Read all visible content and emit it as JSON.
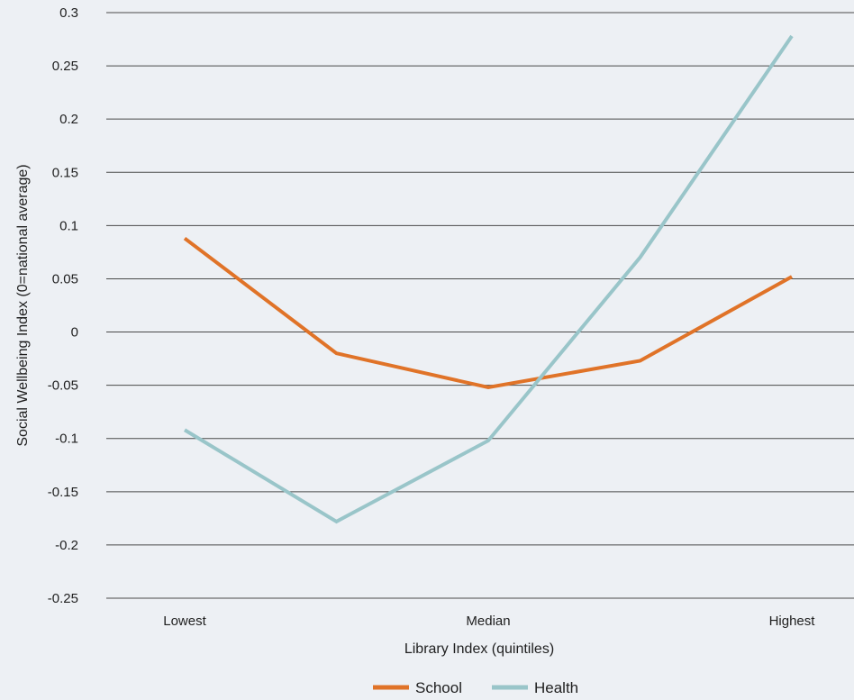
{
  "chart_data": {
    "type": "line",
    "xlabel": "Library Index (quintiles)",
    "ylabel": "Social Wellbeing Index  (0=national average)",
    "x_tick_labels": [
      "Lowest",
      "Median",
      "Highest"
    ],
    "x_tick_positions": [
      1,
      3,
      5
    ],
    "x": [
      1,
      2,
      3,
      4,
      5
    ],
    "ylim": [
      -0.25,
      0.3
    ],
    "y_ticks": [
      -0.25,
      -0.2,
      -0.15,
      -0.1,
      -0.05,
      0,
      0.05,
      0.1,
      0.15,
      0.2,
      0.25,
      0.3
    ],
    "y_tick_labels": [
      "-0.25",
      "-0.2",
      "-0.15",
      "-0.1",
      "-0.05",
      "0",
      "0.05",
      "0.1",
      "0.15",
      "0.2",
      "0.25",
      "0.3"
    ],
    "grid": true,
    "legend_position": "bottom-center",
    "series": [
      {
        "name": "School",
        "color": "#e07328",
        "values": [
          0.088,
          -0.02,
          -0.052,
          -0.027,
          0.052
        ]
      },
      {
        "name": "Health",
        "color": "#99c5c9",
        "values": [
          -0.092,
          -0.178,
          -0.102,
          0.07,
          0.278
        ]
      }
    ]
  }
}
